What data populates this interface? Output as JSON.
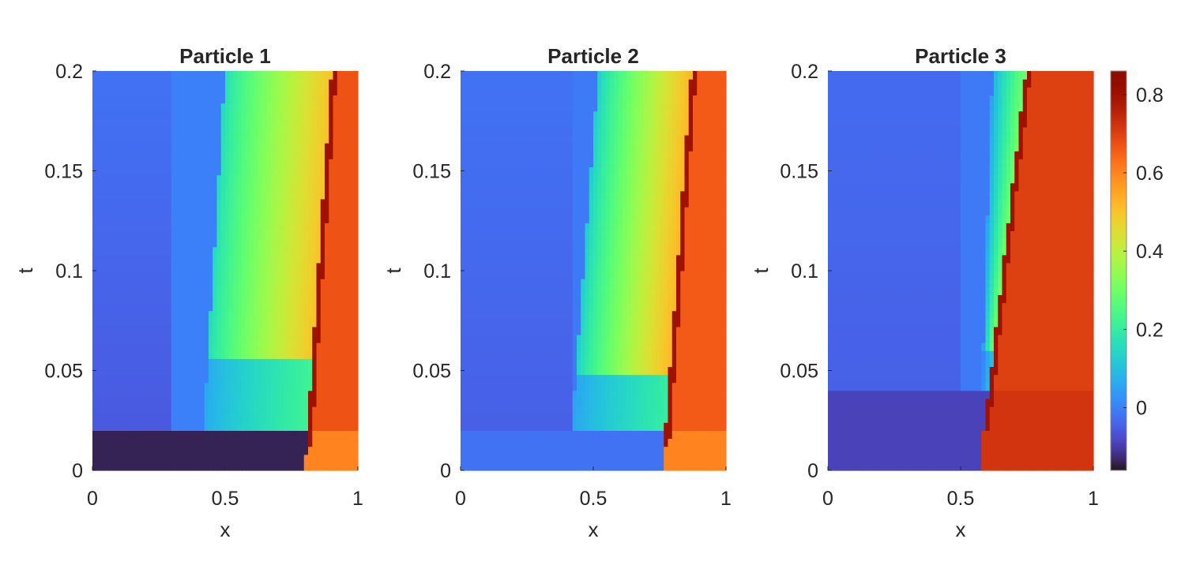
{
  "chart_data": {
    "type": "heatmap",
    "colormap": "turbo",
    "colorbar": {
      "range": [
        -0.16,
        0.86
      ],
      "ticks": [
        0,
        0.2,
        0.4,
        0.6,
        0.8
      ],
      "tick_labels": [
        "0",
        "0.2",
        "0.4",
        "0.6",
        "0.8"
      ]
    },
    "xlim": [
      0,
      1
    ],
    "ylim": [
      0,
      0.2
    ],
    "xticks": [
      0,
      0.5,
      1
    ],
    "xtick_labels": [
      "0",
      "0.5",
      "1"
    ],
    "yticks": [
      0,
      0.05,
      0.1,
      0.15,
      0.2
    ],
    "ytick_labels": [
      "0",
      "0.05",
      "0.1",
      "0.15",
      "0.2"
    ],
    "xlabel": "x",
    "ylabel": "t",
    "panels": [
      {
        "title": "Particle 1",
        "shock": [
          0.8,
          0.9
        ],
        "t_init": 0.022,
        "bottom_left": -0.14,
        "bottom_right": 0.6,
        "left_base": [
          -0.06,
          -0.02
        ],
        "mid_step": [
          0.3,
          0.0
        ],
        "ramp_start": [
          0.42,
          0.5
        ],
        "t_mid": 0.055,
        "ramp_low": [
          0.06,
          0.22
        ],
        "ramp_high": [
          0.15,
          0.5
        ],
        "right": 0.67,
        "band": 0.8
      },
      {
        "title": "Particle 2",
        "shock": [
          0.76,
          0.87
        ],
        "t_init": 0.022,
        "bottom_left": -0.02,
        "bottom_right": 0.6,
        "left_base": [
          -0.05,
          -0.02
        ],
        "mid_step": [
          0.42,
          -0.01
        ],
        "ramp_start": [
          0.42,
          0.52
        ],
        "t_mid": 0.05,
        "ramp_low": [
          0.05,
          0.2
        ],
        "ramp_high": [
          0.12,
          0.52
        ],
        "right": 0.66,
        "band": 0.8
      },
      {
        "title": "Particle 3",
        "shock": [
          0.57,
          0.745
        ],
        "t_init": 0.04,
        "bottom_left": -0.09,
        "bottom_right": 0.72,
        "left_base": [
          -0.05,
          -0.03
        ],
        "mid_step": [
          0.5,
          -0.01
        ],
        "ramp_start": [
          0.58,
          0.62
        ],
        "t_mid": 0.06,
        "ramp_low": [
          0.0,
          0.1
        ],
        "ramp_high": [
          0.05,
          0.3
        ],
        "right": 0.7,
        "band": 0.8
      }
    ]
  }
}
